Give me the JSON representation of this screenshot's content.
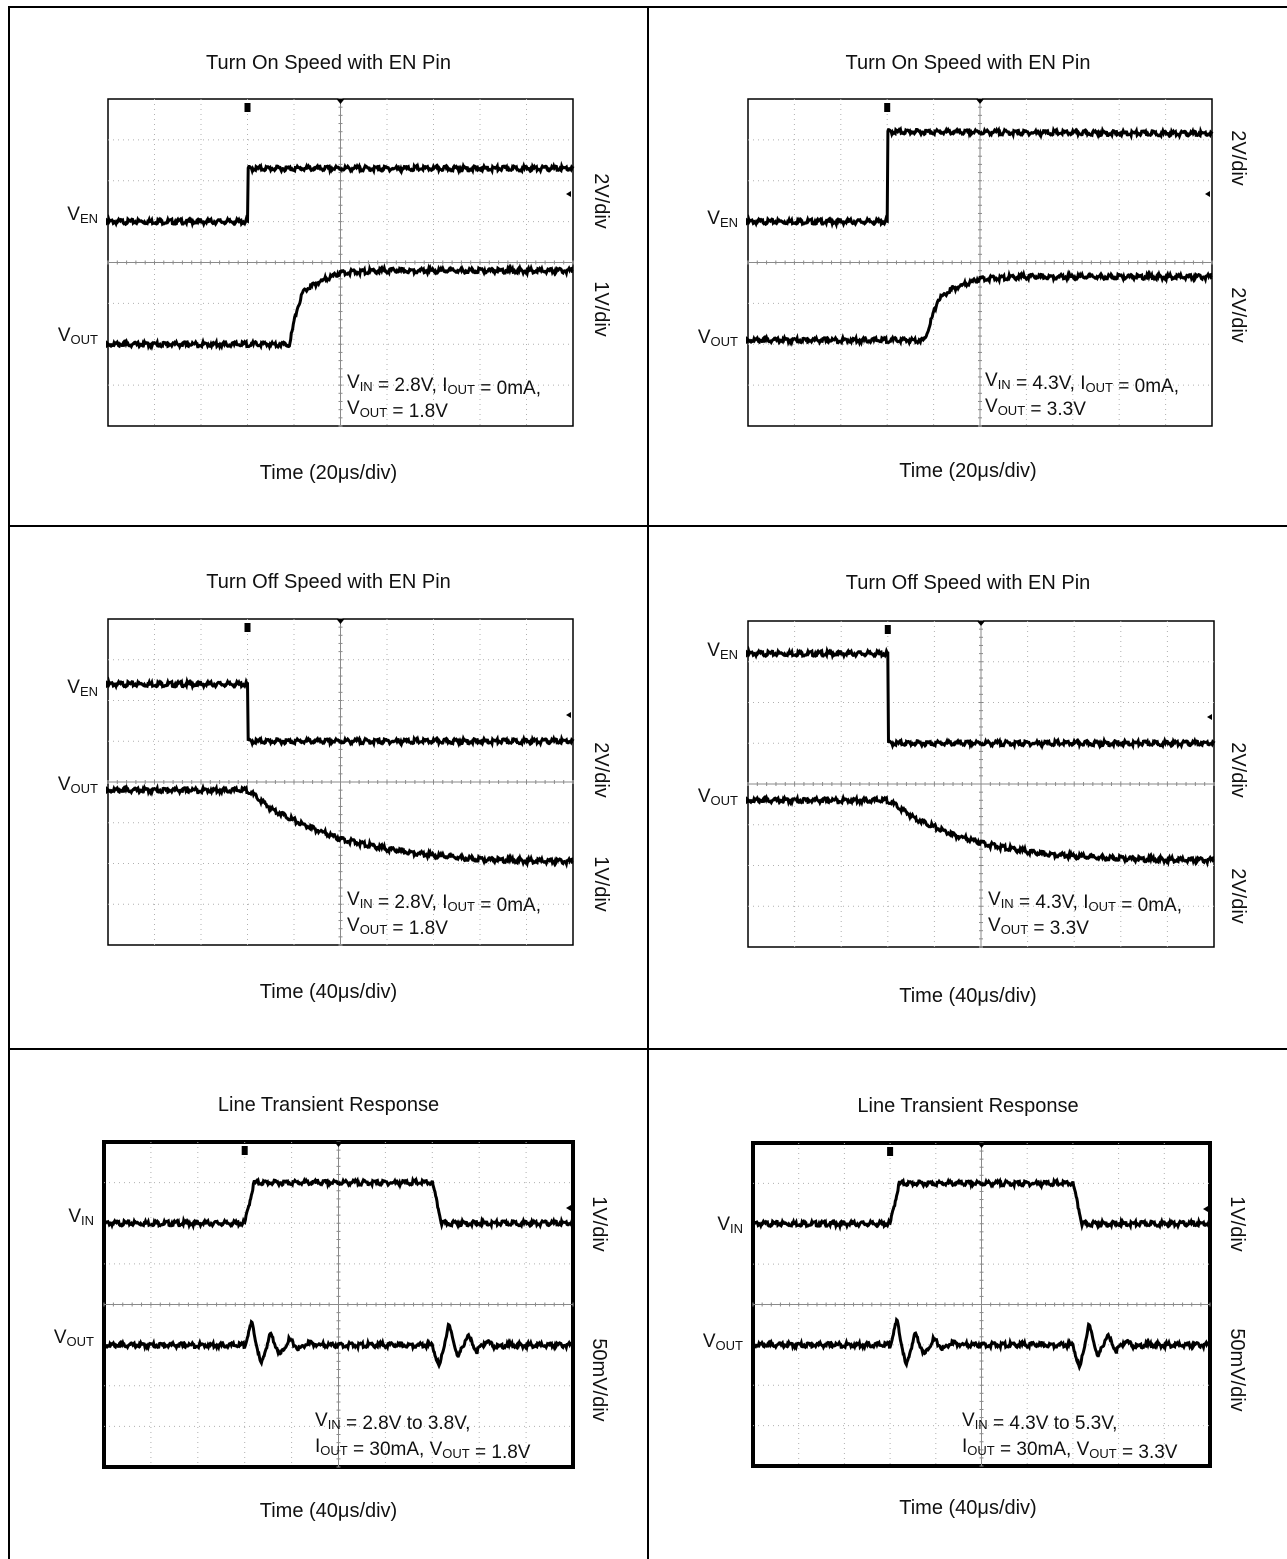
{
  "figure": {
    "cells": [
      {
        "id": "turn-on-1v8",
        "title": "Turn On Speed with EN Pin",
        "time_label": "Time (20μs/div)",
        "scale_labels": [
          "2V/div",
          "1V/div"
        ],
        "conditions": [
          [
            {
              "t": "V"
            },
            {
              "s": "IN"
            },
            {
              "t": " = 2.8V, I"
            },
            {
              "s": "OUT"
            },
            {
              "t": " = 0mA,"
            }
          ],
          [
            {
              "t": "V"
            },
            {
              "s": "OUT"
            },
            {
              "t": " = 1.8V"
            }
          ]
        ],
        "channel_labels": [
          {
            "main": "V",
            "sub": "EN"
          },
          {
            "main": "V",
            "sub": "OUT"
          }
        ]
      },
      {
        "id": "turn-on-3v3",
        "title": "Turn On Speed with EN Pin",
        "time_label": "Time (20μs/div)",
        "scale_labels": [
          "2V/div",
          "2V/div"
        ],
        "conditions": [
          [
            {
              "t": "V"
            },
            {
              "s": "IN"
            },
            {
              "t": " = 4.3V, I"
            },
            {
              "s": "OUT"
            },
            {
              "t": " = 0mA,"
            }
          ],
          [
            {
              "t": "V"
            },
            {
              "s": "OUT"
            },
            {
              "t": " = 3.3V"
            }
          ]
        ],
        "channel_labels": [
          {
            "main": "V",
            "sub": "EN"
          },
          {
            "main": "V",
            "sub": "OUT"
          }
        ]
      },
      {
        "id": "turn-off-1v8",
        "title": "Turn Off Speed with EN Pin",
        "time_label": "Time (40μs/div)",
        "scale_labels": [
          "2V/div",
          "1V/div"
        ],
        "conditions": [
          [
            {
              "t": "V"
            },
            {
              "s": "IN"
            },
            {
              "t": " = 2.8V, I"
            },
            {
              "s": "OUT"
            },
            {
              "t": " = 0mA,"
            }
          ],
          [
            {
              "t": "V"
            },
            {
              "s": "OUT"
            },
            {
              "t": " = 1.8V"
            }
          ]
        ],
        "channel_labels": [
          {
            "main": "V",
            "sub": "EN"
          },
          {
            "main": "V",
            "sub": "OUT"
          }
        ]
      },
      {
        "id": "turn-off-3v3",
        "title": "Turn Off Speed with EN Pin",
        "time_label": "Time (40μs/div)",
        "scale_labels": [
          "2V/div",
          "2V/div"
        ],
        "conditions": [
          [
            {
              "t": "V"
            },
            {
              "s": "IN"
            },
            {
              "t": " = 4.3V, I"
            },
            {
              "s": "OUT"
            },
            {
              "t": " = 0mA,"
            }
          ],
          [
            {
              "t": "V"
            },
            {
              "s": "OUT"
            },
            {
              "t": " = 3.3V"
            }
          ]
        ],
        "channel_labels": [
          {
            "main": "V",
            "sub": "EN"
          },
          {
            "main": "V",
            "sub": "OUT"
          }
        ]
      },
      {
        "id": "line-transient-1v8",
        "title": "Line Transient Response",
        "time_label": "Time (40μs/div)",
        "scale_labels": [
          "1V/div",
          "50mV/div"
        ],
        "conditions": [
          [
            {
              "t": "V"
            },
            {
              "s": "IN"
            },
            {
              "t": " = 2.8V to 3.8V,"
            }
          ],
          [
            {
              "t": "I"
            },
            {
              "s": "OUT"
            },
            {
              "t": " = 30mA, V"
            },
            {
              "s": "OUT"
            },
            {
              "t": " = 1.8V"
            }
          ]
        ],
        "channel_labels": [
          {
            "main": "V",
            "sub": "IN"
          },
          {
            "main": "V",
            "sub": "OUT"
          }
        ]
      },
      {
        "id": "line-transient-3v3",
        "title": "Line Transient Response",
        "time_label": "Time (40μs/div)",
        "scale_labels": [
          "1V/div",
          "50mV/div"
        ],
        "conditions": [
          [
            {
              "t": "V"
            },
            {
              "s": "IN"
            },
            {
              "t": " = 4.3V to 5.3V,"
            }
          ],
          [
            {
              "t": "I"
            },
            {
              "s": "OUT"
            },
            {
              "t": " = 30mA, V"
            },
            {
              "s": "OUT"
            },
            {
              "t": " = 3.3V"
            }
          ]
        ],
        "channel_labels": [
          {
            "main": "V",
            "sub": "IN"
          },
          {
            "main": "V",
            "sub": "OUT"
          }
        ]
      }
    ]
  },
  "chart_data": [
    {
      "type": "line",
      "title": "Turn On Speed with EN Pin",
      "xlabel": "Time (20μs/div)",
      "xlim_div": [
        0,
        10
      ],
      "ylim_div": [
        0,
        8
      ],
      "grid": true,
      "series": [
        {
          "name": "V_EN",
          "scale": "2V/div",
          "points_div": [
            [
              0,
              5.0
            ],
            [
              3.0,
              5.0
            ],
            [
              3.0,
              6.3
            ],
            [
              10,
              6.3
            ]
          ]
        },
        {
          "name": "V_OUT",
          "scale": "1V/div",
          "points_div": [
            [
              0,
              2.0
            ],
            [
              3.9,
              2.0
            ],
            [
              4.05,
              2.8
            ],
            [
              4.2,
              3.3
            ],
            [
              4.5,
              3.5
            ],
            [
              5.0,
              3.75
            ],
            [
              6,
              3.8
            ],
            [
              10,
              3.8
            ]
          ]
        }
      ]
    },
    {
      "type": "line",
      "title": "Turn On Speed with EN Pin",
      "xlabel": "Time (20μs/div)",
      "xlim_div": [
        0,
        10
      ],
      "ylim_div": [
        0,
        8
      ],
      "grid": true,
      "series": [
        {
          "name": "V_EN",
          "scale": "2V/div",
          "points_div": [
            [
              0,
              5.0
            ],
            [
              3.0,
              5.0
            ],
            [
              3.0,
              7.2
            ],
            [
              10,
              7.15
            ]
          ]
        },
        {
          "name": "V_OUT",
          "scale": "2V/div",
          "points_div": [
            [
              0,
              2.1
            ],
            [
              3.8,
              2.1
            ],
            [
              3.95,
              2.6
            ],
            [
              4.1,
              3.1
            ],
            [
              4.4,
              3.35
            ],
            [
              5.0,
              3.6
            ],
            [
              6,
              3.65
            ],
            [
              10,
              3.65
            ]
          ]
        }
      ]
    },
    {
      "type": "line",
      "title": "Turn Off Speed with EN Pin",
      "xlabel": "Time (40μs/div)",
      "xlim_div": [
        0,
        10
      ],
      "ylim_div": [
        0,
        8
      ],
      "grid": true,
      "series": [
        {
          "name": "V_EN",
          "scale": "2V/div",
          "points_div": [
            [
              0,
              6.4
            ],
            [
              3.0,
              6.4
            ],
            [
              3.0,
              5.0
            ],
            [
              10,
              5.0
            ]
          ]
        },
        {
          "name": "V_OUT",
          "scale": "1V/div",
          "points_div": [
            [
              0,
              3.8
            ],
            [
              3.0,
              3.8
            ],
            [
              3.5,
              3.35
            ],
            [
              4.2,
              2.95
            ],
            [
              5.0,
              2.6
            ],
            [
              6.0,
              2.35
            ],
            [
              7.0,
              2.2
            ],
            [
              8.0,
              2.1
            ],
            [
              9.0,
              2.07
            ],
            [
              10,
              2.05
            ]
          ]
        }
      ]
    },
    {
      "type": "line",
      "title": "Turn Off Speed with EN Pin",
      "xlabel": "Time (40μs/div)",
      "xlim_div": [
        0,
        10
      ],
      "ylim_div": [
        0,
        8
      ],
      "grid": true,
      "series": [
        {
          "name": "V_EN",
          "scale": "2V/div",
          "points_div": [
            [
              0,
              7.2
            ],
            [
              3.0,
              7.2
            ],
            [
              3.0,
              5.0
            ],
            [
              10,
              5.0
            ]
          ]
        },
        {
          "name": "V_OUT",
          "scale": "2V/div",
          "points_div": [
            [
              0,
              3.6
            ],
            [
              3.0,
              3.6
            ],
            [
              3.6,
              3.15
            ],
            [
              4.4,
              2.75
            ],
            [
              5.2,
              2.5
            ],
            [
              6.2,
              2.3
            ],
            [
              7.4,
              2.2
            ],
            [
              8.6,
              2.15
            ],
            [
              10,
              2.13
            ]
          ]
        }
      ]
    },
    {
      "type": "line",
      "title": "Line Transient Response",
      "xlabel": "Time (40μs/div)",
      "xlim_div": [
        0,
        10
      ],
      "ylim_div": [
        0,
        8
      ],
      "grid": true,
      "series": [
        {
          "name": "V_IN",
          "scale": "1V/div",
          "points_div": [
            [
              0,
              6.0
            ],
            [
              3.0,
              6.0
            ],
            [
              3.2,
              7.0
            ],
            [
              7.0,
              7.0
            ],
            [
              7.2,
              6.0
            ],
            [
              10,
              6.0
            ]
          ]
        },
        {
          "name": "V_OUT",
          "scale": "50mV/div",
          "points_div": [
            [
              0,
              3.0
            ],
            [
              3.0,
              3.0
            ],
            [
              3.15,
              3.55
            ],
            [
              3.35,
              2.5
            ],
            [
              3.55,
              3.3
            ],
            [
              3.75,
              2.75
            ],
            [
              3.95,
              3.15
            ],
            [
              4.15,
              2.9
            ],
            [
              4.35,
              3.05
            ],
            [
              4.6,
              3.0
            ],
            [
              7.0,
              3.0
            ],
            [
              7.15,
              2.45
            ],
            [
              7.35,
              3.5
            ],
            [
              7.55,
              2.7
            ],
            [
              7.75,
              3.25
            ],
            [
              7.95,
              2.85
            ],
            [
              8.15,
              3.1
            ],
            [
              8.35,
              2.95
            ],
            [
              8.6,
              3.0
            ],
            [
              10,
              3.0
            ]
          ]
        }
      ]
    },
    {
      "type": "line",
      "title": "Line Transient Response",
      "xlabel": "Time (40μs/div)",
      "xlim_div": [
        0,
        10
      ],
      "ylim_div": [
        0,
        8
      ],
      "grid": true,
      "series": [
        {
          "name": "V_IN",
          "scale": "1V/div",
          "points_div": [
            [
              0,
              6.0
            ],
            [
              3.0,
              6.0
            ],
            [
              3.2,
              7.0
            ],
            [
              7.0,
              7.0
            ],
            [
              7.2,
              6.0
            ],
            [
              10,
              6.0
            ]
          ]
        },
        {
          "name": "V_OUT",
          "scale": "50mV/div",
          "points_div": [
            [
              0,
              3.0
            ],
            [
              3.0,
              3.0
            ],
            [
              3.15,
              3.6
            ],
            [
              3.35,
              2.45
            ],
            [
              3.55,
              3.3
            ],
            [
              3.75,
              2.75
            ],
            [
              3.95,
              3.15
            ],
            [
              4.15,
              2.9
            ],
            [
              4.35,
              3.05
            ],
            [
              4.6,
              3.0
            ],
            [
              7.0,
              3.0
            ],
            [
              7.15,
              2.4
            ],
            [
              7.35,
              3.5
            ],
            [
              7.55,
              2.7
            ],
            [
              7.75,
              3.25
            ],
            [
              7.95,
              2.85
            ],
            [
              8.15,
              3.1
            ],
            [
              8.35,
              2.95
            ],
            [
              8.6,
              3.0
            ],
            [
              10,
              3.0
            ]
          ]
        }
      ]
    }
  ]
}
